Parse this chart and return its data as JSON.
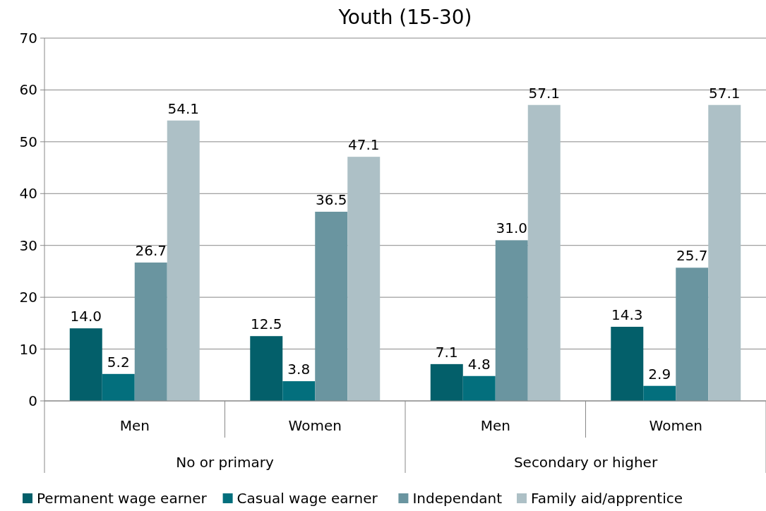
{
  "chart_data": {
    "type": "bar",
    "title": "Youth (15-30)",
    "categories": [
      "Men",
      "Women",
      "Men",
      "Women"
    ],
    "series": [
      {
        "name": "Permanent wage earner",
        "color": "#035f6a",
        "values": [
          14.0,
          12.5,
          7.1,
          14.3
        ],
        "value_labels": [
          "14.0",
          "12.5",
          "7.1",
          "14.3"
        ]
      },
      {
        "name": "Casual wage earner",
        "color": "#036f7d",
        "values": [
          5.2,
          3.8,
          4.8,
          2.9
        ],
        "value_labels": [
          "5.2",
          "3.8",
          "4.8",
          "2.9"
        ]
      },
      {
        "name": "Independant",
        "color": "#6a95a0",
        "values": [
          26.7,
          36.5,
          31.0,
          25.7
        ],
        "value_labels": [
          "26.7",
          "36.5",
          "31.0",
          "25.7"
        ]
      },
      {
        "name": "Family aid/apprentice",
        "color": "#adc0c6",
        "values": [
          54.1,
          47.1,
          57.1,
          57.1
        ],
        "value_labels": [
          "54.1",
          "47.1",
          "57.1",
          "57.1"
        ]
      }
    ],
    "ylim": [
      0,
      70
    ],
    "yticks": [
      0,
      10,
      20,
      30,
      40,
      50,
      60,
      70
    ],
    "grid": "y",
    "legend": "bottom",
    "annotations": [
      "No or primary",
      "Secondary or higher"
    ]
  }
}
